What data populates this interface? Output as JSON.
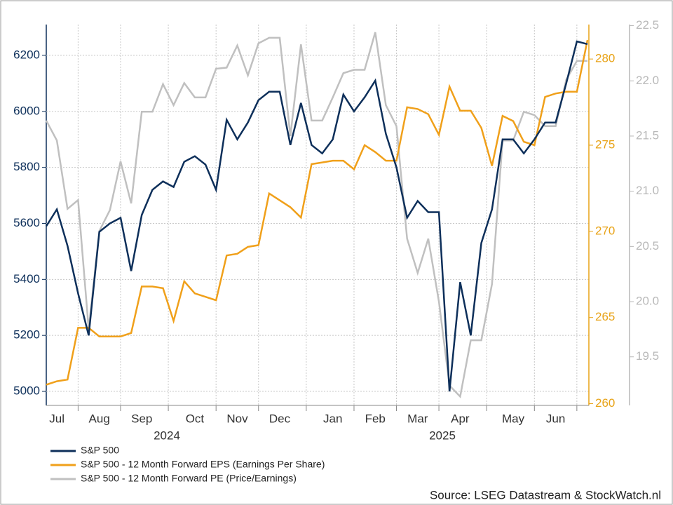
{
  "chart_data": {
    "type": "line",
    "categories": [
      null,
      "Jul",
      null,
      null,
      null,
      "Aug",
      null,
      null,
      null,
      "Sep",
      null,
      null,
      null,
      null,
      "Oct",
      null,
      null,
      null,
      "Nov",
      null,
      null,
      null,
      "Dec",
      null,
      null,
      null,
      null,
      "Jan",
      null,
      null,
      null,
      "Feb",
      null,
      null,
      null,
      "Mar",
      null,
      null,
      null,
      "Apr",
      null,
      null,
      null,
      null,
      "May",
      null,
      null,
      null,
      "Jun",
      null,
      null,
      null
    ],
    "year_labels": [
      "2024",
      "2025"
    ],
    "series": [
      {
        "name": "S&P 500",
        "color": "#0d2f5a",
        "axis": "y",
        "values": [
          5590,
          5650,
          5520,
          5350,
          5200,
          5570,
          5600,
          5620,
          5430,
          5630,
          5720,
          5750,
          5730,
          5820,
          5840,
          5810,
          5720,
          5970,
          5900,
          5960,
          6040,
          6070,
          6070,
          5880,
          6030,
          5880,
          5850,
          5900,
          6060,
          6000,
          6050,
          6110,
          5920,
          5800,
          5620,
          5680,
          5640,
          5640,
          5000,
          5390,
          5200,
          5530,
          5650,
          5900,
          5900,
          5850,
          5900,
          5960,
          5960,
          6100,
          6250,
          6240
        ]
      },
      {
        "name": "S&P 500 - 12 Month Forward EPS (Earnings Per Share)",
        "color": "#f0a01a",
        "axis": "y2",
        "values": [
          261.1,
          261.3,
          261.4,
          264.4,
          264.4,
          263.9,
          263.9,
          263.9,
          264.1,
          266.8,
          266.8,
          266.7,
          264.8,
          267.1,
          266.4,
          266.2,
          266.0,
          268.6,
          268.7,
          269.1,
          269.2,
          272.2,
          271.8,
          271.4,
          270.8,
          273.9,
          274.0,
          274.1,
          274.1,
          273.6,
          275.0,
          274.6,
          274.1,
          274.1,
          277.2,
          277.1,
          276.8,
          275.6,
          278.4,
          277.0,
          277.0,
          276.0,
          273.8,
          276.7,
          276.4,
          275.2,
          275.0,
          277.8,
          278.0,
          278.1,
          278.1,
          281.1
        ]
      },
      {
        "name": "S&P 500 - 12 Month Forward PE (Price/Earnings)",
        "color": "#c0c0c0",
        "axis": "y3",
        "values": [
          21.64,
          21.46,
          20.84,
          20.92,
          19.75,
          20.64,
          20.83,
          21.27,
          20.89,
          21.72,
          21.72,
          21.97,
          21.78,
          21.98,
          21.85,
          21.85,
          22.11,
          22.12,
          22.32,
          22.05,
          22.34,
          22.39,
          22.39,
          21.5,
          22.33,
          21.64,
          21.64,
          21.85,
          22.07,
          22.1,
          22.1,
          22.44,
          21.78,
          21.59,
          20.57,
          20.26,
          20.57,
          20.0,
          19.24,
          19.14,
          19.65,
          19.65,
          20.16,
          21.46,
          21.46,
          21.72,
          21.69,
          21.59,
          21.59,
          22.01,
          22.18,
          22.18
        ]
      }
    ],
    "ylim": [
      4950,
      6310
    ],
    "yticks": [
      5000,
      5200,
      5400,
      5600,
      5800,
      6000,
      6200
    ],
    "y2lim": [
      259.9,
      282
    ],
    "y2ticks": [
      260,
      265,
      270,
      275,
      280
    ],
    "y3lim": [
      19.06,
      22.51
    ],
    "y3ticks": [
      19.5,
      {
        "value": 20,
        "label": "20.0"
      },
      20.5,
      {
        "value": 21,
        "label": "21.0"
      },
      21.5,
      {
        "value": 22,
        "label": "22.0"
      },
      22.5
    ],
    "grid": true,
    "source": "Source: LSEG Datastream & StockWatch.nl"
  }
}
